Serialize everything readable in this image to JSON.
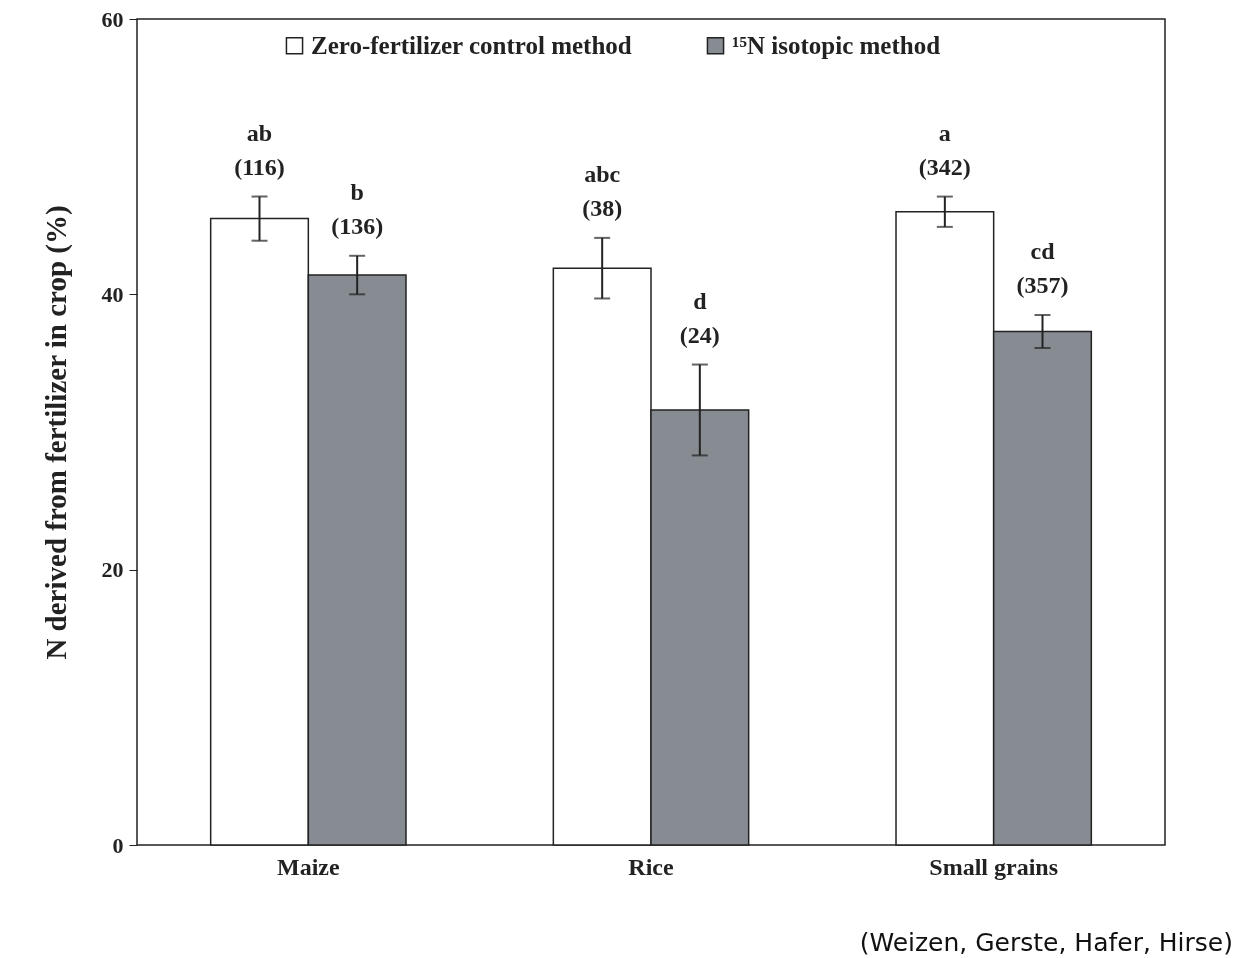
{
  "chart_data": {
    "type": "bar",
    "ylabel": "N derived from fertilizer in crop (%)",
    "categories": [
      "Maize",
      "Rice",
      "Small grains"
    ],
    "series": [
      {
        "name": "Zero-fertilizer control method",
        "color": "#ffffff",
        "values": [
          45.5,
          41.9,
          46.0
        ],
        "errors": [
          1.6,
          2.2,
          1.1
        ]
      },
      {
        "name": "¹⁵N isotopic method",
        "color": "#878c92",
        "values": [
          41.4,
          31.6,
          37.3
        ],
        "errors": [
          1.4,
          3.3,
          1.2
        ]
      }
    ],
    "ylim": [
      0,
      60
    ],
    "yticks": [
      0,
      20,
      40,
      60
    ],
    "grid": false,
    "legend": "top",
    "annotations": [
      {
        "text": "ab (116)",
        "x": "Maize",
        "y": 45.5
      },
      {
        "text": "b (136)",
        "x": "Maize",
        "y": 41.4
      },
      {
        "text": "abc (38)",
        "x": "Rice",
        "y": 41.9
      },
      {
        "text": "d (24)",
        "x": "Rice",
        "y": 31.6
      },
      {
        "text": "a (342)",
        "x": "Small grains",
        "y": 46.0
      },
      {
        "text": "cd (357)",
        "x": "Small grains",
        "y": 37.3
      },
      "(Weizen, Gerste, Hafer, Hirse)"
    ]
  }
}
